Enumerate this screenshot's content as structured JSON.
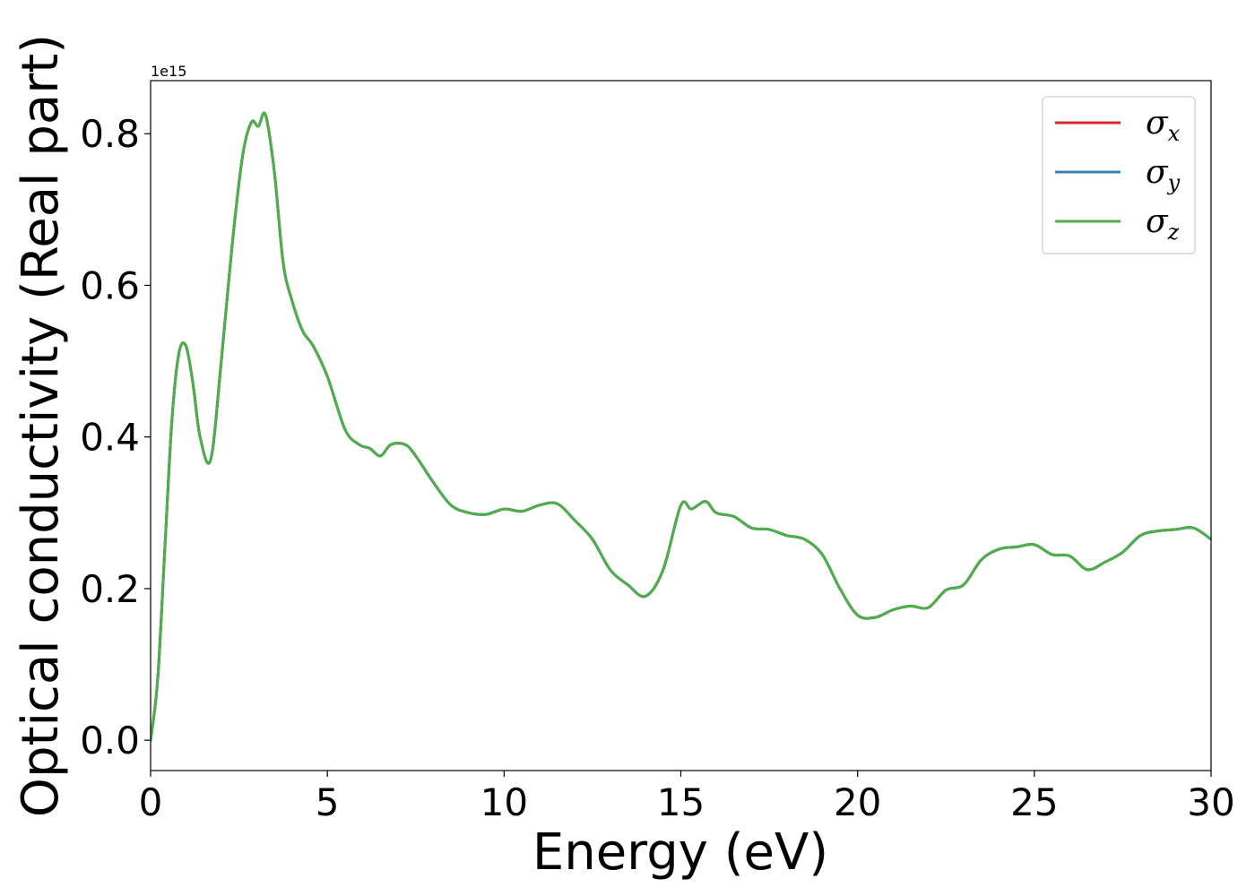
{
  "chart_data": {
    "type": "line",
    "xlabel": "Energy (eV)",
    "ylabel": "Optical conductivity (Real part)",
    "y_offset_label": "1e15",
    "xlim": [
      0,
      30
    ],
    "ylim": [
      -0.04,
      0.87
    ],
    "x_ticks": [
      0,
      5,
      10,
      15,
      20,
      25,
      30
    ],
    "x_tick_labels": [
      "0",
      "5",
      "10",
      "15",
      "20",
      "25",
      "30"
    ],
    "y_ticks": [
      0.0,
      0.2,
      0.4,
      0.6,
      0.8
    ],
    "y_tick_labels": [
      "0.0",
      "0.2",
      "0.4",
      "0.6",
      "0.8"
    ],
    "grid": false,
    "legend_position": "top-right",
    "x": [
      0,
      0.2,
      0.4,
      0.6,
      0.8,
      1.0,
      1.2,
      1.4,
      1.7,
      2.0,
      2.3,
      2.6,
      2.85,
      3.05,
      3.25,
      3.5,
      3.75,
      4.0,
      4.3,
      4.6,
      5.0,
      5.5,
      5.9,
      6.2,
      6.5,
      6.8,
      7.2,
      7.5,
      8.0,
      8.5,
      9.0,
      9.5,
      10.0,
      10.5,
      11.0,
      11.5,
      12.0,
      12.5,
      13.0,
      13.5,
      14.0,
      14.5,
      15.0,
      15.3,
      15.7,
      16.0,
      16.5,
      17.0,
      17.5,
      18.0,
      18.5,
      19.0,
      19.5,
      20.0,
      20.5,
      21.0,
      21.5,
      22.0,
      22.5,
      23.0,
      23.5,
      24.0,
      24.5,
      25.0,
      25.5,
      26.0,
      26.5,
      27.0,
      27.5,
      28.0,
      28.5,
      29.0,
      29.5,
      30.0
    ],
    "series": [
      {
        "name": "σx",
        "color": "#d62728",
        "values": [
          0.0,
          0.08,
          0.25,
          0.42,
          0.51,
          0.52,
          0.47,
          0.4,
          0.37,
          0.5,
          0.65,
          0.77,
          0.815,
          0.81,
          0.825,
          0.75,
          0.63,
          0.58,
          0.54,
          0.52,
          0.48,
          0.41,
          0.39,
          0.385,
          0.375,
          0.39,
          0.39,
          0.375,
          0.34,
          0.31,
          0.3,
          0.298,
          0.305,
          0.302,
          0.31,
          0.312,
          0.29,
          0.265,
          0.225,
          0.205,
          0.19,
          0.225,
          0.31,
          0.305,
          0.315,
          0.3,
          0.295,
          0.28,
          0.278,
          0.27,
          0.265,
          0.245,
          0.2,
          0.165,
          0.162,
          0.172,
          0.177,
          0.175,
          0.198,
          0.205,
          0.238,
          0.252,
          0.255,
          0.258,
          0.245,
          0.243,
          0.225,
          0.235,
          0.248,
          0.27,
          0.276,
          0.278,
          0.28,
          0.265
        ]
      },
      {
        "name": "σy",
        "color": "#3a7db5",
        "values": [
          0.0,
          0.08,
          0.25,
          0.42,
          0.51,
          0.52,
          0.47,
          0.4,
          0.37,
          0.5,
          0.65,
          0.77,
          0.815,
          0.81,
          0.825,
          0.75,
          0.63,
          0.58,
          0.54,
          0.52,
          0.48,
          0.41,
          0.39,
          0.385,
          0.375,
          0.39,
          0.39,
          0.375,
          0.34,
          0.31,
          0.3,
          0.298,
          0.305,
          0.302,
          0.31,
          0.312,
          0.29,
          0.265,
          0.225,
          0.205,
          0.19,
          0.225,
          0.31,
          0.305,
          0.315,
          0.3,
          0.295,
          0.28,
          0.278,
          0.27,
          0.265,
          0.245,
          0.2,
          0.165,
          0.162,
          0.172,
          0.177,
          0.175,
          0.198,
          0.205,
          0.238,
          0.252,
          0.255,
          0.258,
          0.245,
          0.243,
          0.225,
          0.235,
          0.248,
          0.27,
          0.276,
          0.278,
          0.28,
          0.265
        ]
      },
      {
        "name": "σz",
        "color": "#4daf4a",
        "values": [
          0.0,
          0.08,
          0.25,
          0.42,
          0.51,
          0.52,
          0.47,
          0.4,
          0.37,
          0.5,
          0.65,
          0.77,
          0.815,
          0.81,
          0.825,
          0.75,
          0.63,
          0.58,
          0.54,
          0.52,
          0.48,
          0.41,
          0.39,
          0.385,
          0.375,
          0.39,
          0.39,
          0.375,
          0.34,
          0.31,
          0.3,
          0.298,
          0.305,
          0.302,
          0.31,
          0.312,
          0.29,
          0.265,
          0.225,
          0.205,
          0.19,
          0.225,
          0.31,
          0.305,
          0.315,
          0.3,
          0.295,
          0.28,
          0.278,
          0.27,
          0.265,
          0.245,
          0.2,
          0.165,
          0.162,
          0.172,
          0.177,
          0.175,
          0.198,
          0.205,
          0.238,
          0.252,
          0.255,
          0.258,
          0.245,
          0.243,
          0.225,
          0.235,
          0.248,
          0.27,
          0.276,
          0.278,
          0.28,
          0.265
        ]
      }
    ],
    "legend": [
      {
        "symbol": "σ",
        "sub": "x",
        "color": "#d62728"
      },
      {
        "symbol": "σ",
        "sub": "y",
        "color": "#3a7db5"
      },
      {
        "symbol": "σ",
        "sub": "z",
        "color": "#4daf4a"
      }
    ]
  }
}
